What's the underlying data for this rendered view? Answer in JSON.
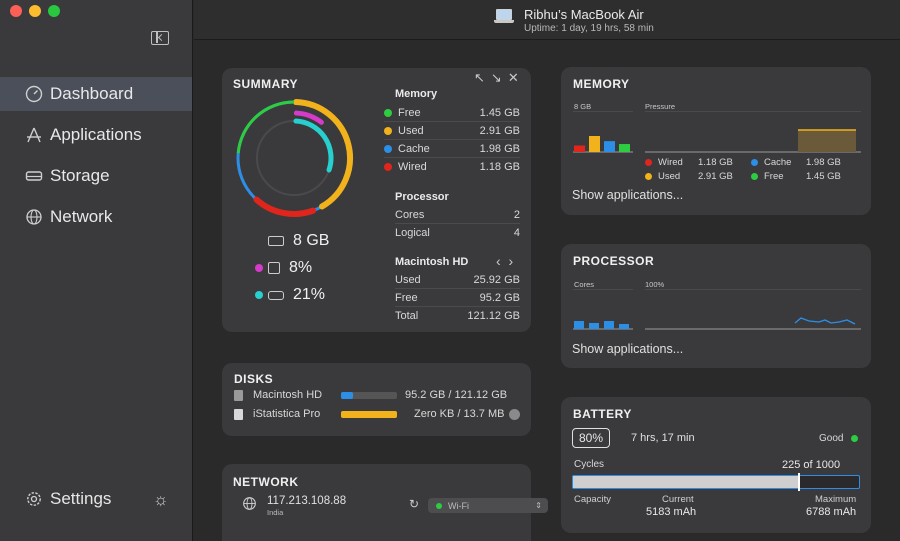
{
  "titlebar": {
    "device_name": "Ribhu’s MacBook Air",
    "uptime": "Uptime: 1 day, 19 hrs, 58 min"
  },
  "sidebar": {
    "items": [
      {
        "label": "Dashboard",
        "icon": "gauge-icon",
        "active": true
      },
      {
        "label": "Applications",
        "icon": "apps-icon",
        "active": false
      },
      {
        "label": "Storage",
        "icon": "drive-icon",
        "active": false
      },
      {
        "label": "Network",
        "icon": "globe-icon",
        "active": false
      }
    ],
    "settings_label": "Settings"
  },
  "summary": {
    "title": "SUMMARY",
    "ring": {
      "memory_fraction": 0.8,
      "cpu_fraction": 0.08,
      "disk_fraction": 0.21
    },
    "stats": {
      "memory": "8 GB",
      "cpu": "8%",
      "disk": "21%"
    },
    "memory": {
      "heading": "Memory",
      "rows": [
        {
          "label": "Free",
          "value": "1.45 GB",
          "color": "#2ecc40"
        },
        {
          "label": "Used",
          "value": "2.91 GB",
          "color": "#f1b21c"
        },
        {
          "label": "Cache",
          "value": "1.98 GB",
          "color": "#2d8ee6"
        },
        {
          "label": "Wired",
          "value": "1.18 GB",
          "color": "#e0251c"
        }
      ]
    },
    "processor": {
      "heading": "Processor",
      "rows": [
        {
          "label": "Cores",
          "value": "2"
        },
        {
          "label": "Logical",
          "value": "4"
        }
      ]
    },
    "disk": {
      "heading": "Macintosh HD",
      "rows": [
        {
          "label": "Used",
          "value": "25.92 GB"
        },
        {
          "label": "Free",
          "value": "95.2 GB"
        },
        {
          "label": "Total",
          "value": "121.12 GB"
        }
      ]
    }
  },
  "memory_card": {
    "title": "MEMORY",
    "bar_label": "8 GB",
    "pressure_label": "Pressure",
    "bars": [
      {
        "color": "#e0251c",
        "value": 1.18
      },
      {
        "color": "#f1b21c",
        "value": 2.91
      },
      {
        "color": "#2d8ee6",
        "value": 1.98
      },
      {
        "color": "#2ecc40",
        "value": 1.45
      }
    ],
    "legend": [
      {
        "label": "Wired",
        "value": "1.18 GB",
        "color": "#e0251c"
      },
      {
        "label": "Cache",
        "value": "1.98 GB",
        "color": "#2d8ee6"
      },
      {
        "label": "Used",
        "value": "2.91 GB",
        "color": "#f1b21c"
      },
      {
        "label": "Free",
        "value": "1.45 GB",
        "color": "#2ecc40"
      }
    ],
    "show_apps": "Show applications..."
  },
  "processor_card": {
    "title": "PROCESSOR",
    "cores_label": "Cores",
    "usage_label": "100%",
    "show_apps": "Show applications..."
  },
  "disks_card": {
    "title": "DISKS",
    "rows": [
      {
        "name": "Macintosh HD",
        "value": "95.2 GB / 121.12 GB",
        "fraction": 0.21,
        "color": "#2d8ee6"
      },
      {
        "name": "iStatistica Pro",
        "value": "Zero KB / 13.7 MB",
        "fraction": 1.0,
        "color": "#f1b21c"
      }
    ]
  },
  "network_card": {
    "title": "NETWORK",
    "ip": "117.213.108.88",
    "country": "India",
    "interface": "Wi-Fi"
  },
  "battery_card": {
    "title": "BATTERY",
    "percent": "80%",
    "time_left": "7 hrs, 17 min",
    "health": "Good",
    "cycles_label": "Cycles",
    "cycles_value": "225 of 1000",
    "cycles_fraction": 0.225,
    "capacity_label": "Capacity",
    "current_label": "Current",
    "current_value": "5183 mAh",
    "maximum_label": "Maximum",
    "maximum_value": "6788 mAh",
    "health_color": "#2ecc40"
  }
}
